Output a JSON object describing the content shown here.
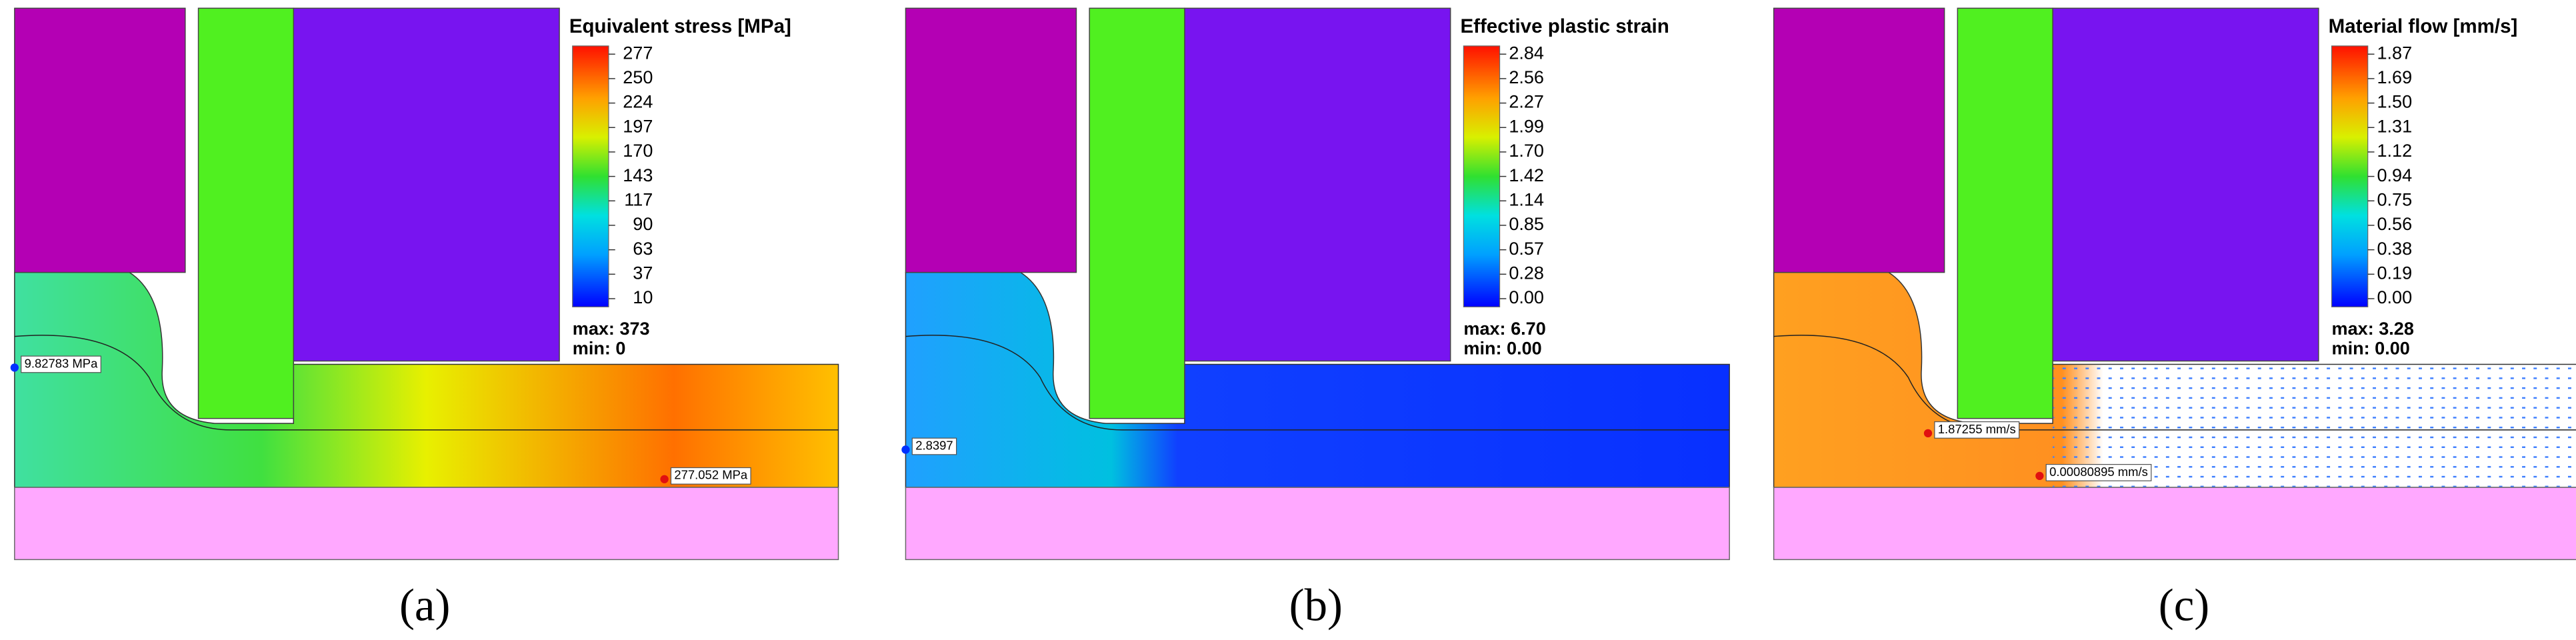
{
  "panels": [
    {
      "caption": "(a)",
      "legend_title": "Equivalent stress [MPa]",
      "ticks": [
        "277",
        "250",
        "224",
        "197",
        "170",
        "143",
        "117",
        "90",
        "63",
        "37",
        "10"
      ],
      "max": "max: 373",
      "min": "min:    0",
      "probes": [
        "9.82783 MPa",
        "277.052 MPa"
      ]
    },
    {
      "caption": "(b)",
      "legend_title": "Effective plastic strain",
      "ticks": [
        "2.84",
        "2.56",
        "2.27",
        "1.99",
        "1.70",
        "1.42",
        "1.14",
        "0.85",
        "0.57",
        "0.28",
        "0.00"
      ],
      "max": "max: 6.70",
      "min": "min: 0.00",
      "probes": [
        "2.8397"
      ]
    },
    {
      "caption": "(c)",
      "legend_title": "Material flow [mm/s]",
      "ticks": [
        "1.87",
        "1.69",
        "1.50",
        "1.31",
        "1.12",
        "0.94",
        "0.75",
        "0.56",
        "0.38",
        "0.19",
        "0.00"
      ],
      "max": "max: 3.28",
      "min": "min: 0.00",
      "probes": [
        "1.87255 mm/s",
        "0.00080895 mm/s"
      ]
    }
  ]
}
